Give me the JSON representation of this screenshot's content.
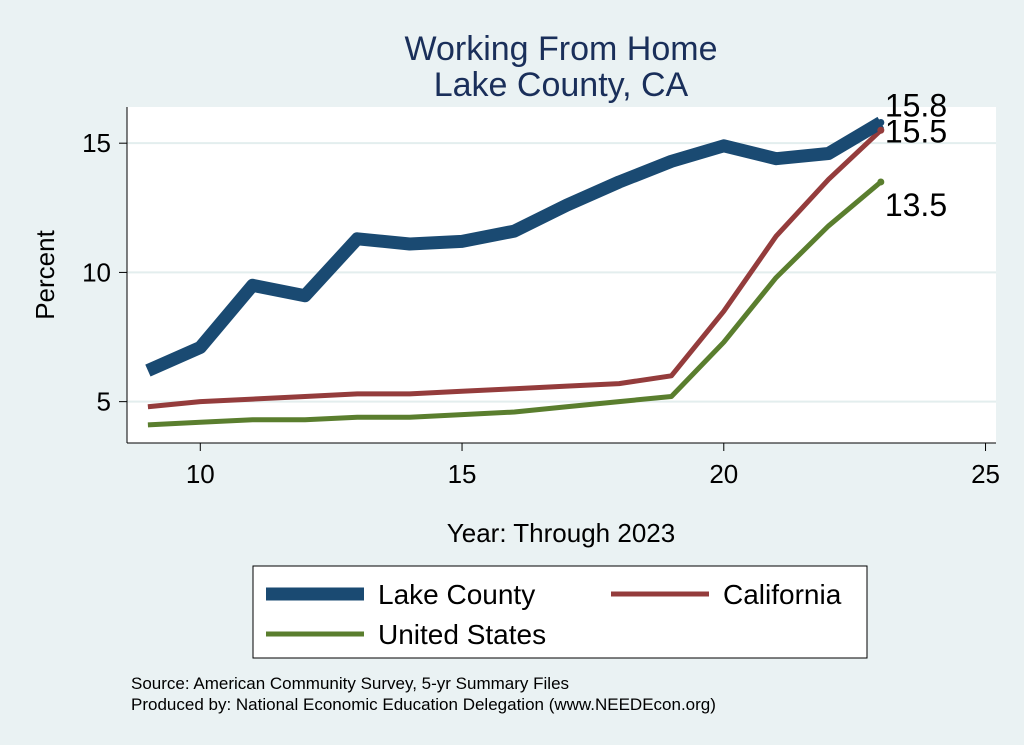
{
  "chart_data": {
    "type": "line",
    "title": "Working From Home",
    "subtitle": "Lake County, CA",
    "xlabel": "Year: Through 2023",
    "ylabel": "Percent",
    "xlim": [
      8.6,
      25.2
    ],
    "ylim": [
      3.4,
      16.4
    ],
    "xticks": [
      10,
      15,
      20,
      25
    ],
    "yticks": [
      5,
      10,
      15
    ],
    "grid": true,
    "legend_position": "bottom",
    "x": [
      9,
      10,
      11,
      12,
      13,
      14,
      15,
      16,
      17,
      18,
      19,
      20,
      21,
      22,
      23
    ],
    "series": [
      {
        "name": "Lake County",
        "color": "#1a4a72",
        "values": [
          6.2,
          7.1,
          9.5,
          9.1,
          11.3,
          11.1,
          11.2,
          11.6,
          12.6,
          13.5,
          14.3,
          14.9,
          14.4,
          14.6,
          15.8
        ],
        "end_label": "15.8"
      },
      {
        "name": "California",
        "color": "#943c3c",
        "values": [
          4.8,
          5.0,
          5.1,
          5.2,
          5.3,
          5.3,
          5.4,
          5.5,
          5.6,
          5.7,
          6.0,
          8.5,
          11.4,
          13.6,
          15.5
        ],
        "end_label": "15.5"
      },
      {
        "name": "United States",
        "color": "#5a7e2e",
        "values": [
          4.1,
          4.2,
          4.3,
          4.3,
          4.4,
          4.4,
          4.5,
          4.6,
          4.8,
          5.0,
          5.2,
          7.3,
          9.8,
          11.8,
          13.5
        ],
        "end_label": "13.5"
      }
    ]
  },
  "source": {
    "line1": "Source: American Community Survey, 5-yr Summary Files",
    "line2": "Produced by: National Economic Education Delegation (www.NEEDEcon.org)"
  }
}
